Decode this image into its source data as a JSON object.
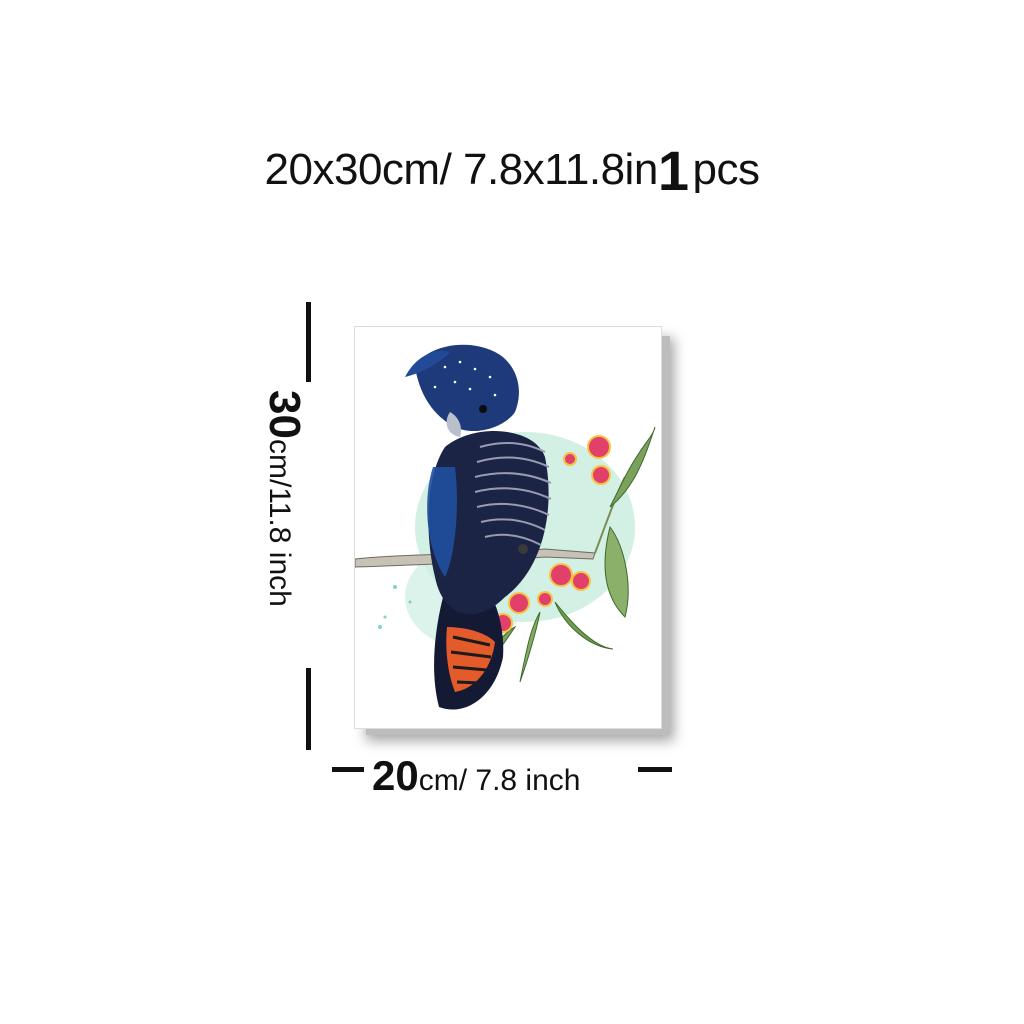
{
  "header": {
    "size_text": "20x30cm/ 7.8x11.8in",
    "qty_number": "1",
    "qty_unit": "pcs"
  },
  "height_label": {
    "number": "30",
    "unit_text": "cm/11.8 inch"
  },
  "width_label": {
    "number": "20",
    "unit_text": "cm/ 7.8 inch"
  },
  "artwork": {
    "subject_icon": "black-cockatoo-painting",
    "colors": {
      "bird": "#1b2a5c",
      "tail": "#e35a2b",
      "leaf": "#6e9a4d",
      "flower": "#e0406a",
      "wash": "#bfe9d7"
    }
  }
}
